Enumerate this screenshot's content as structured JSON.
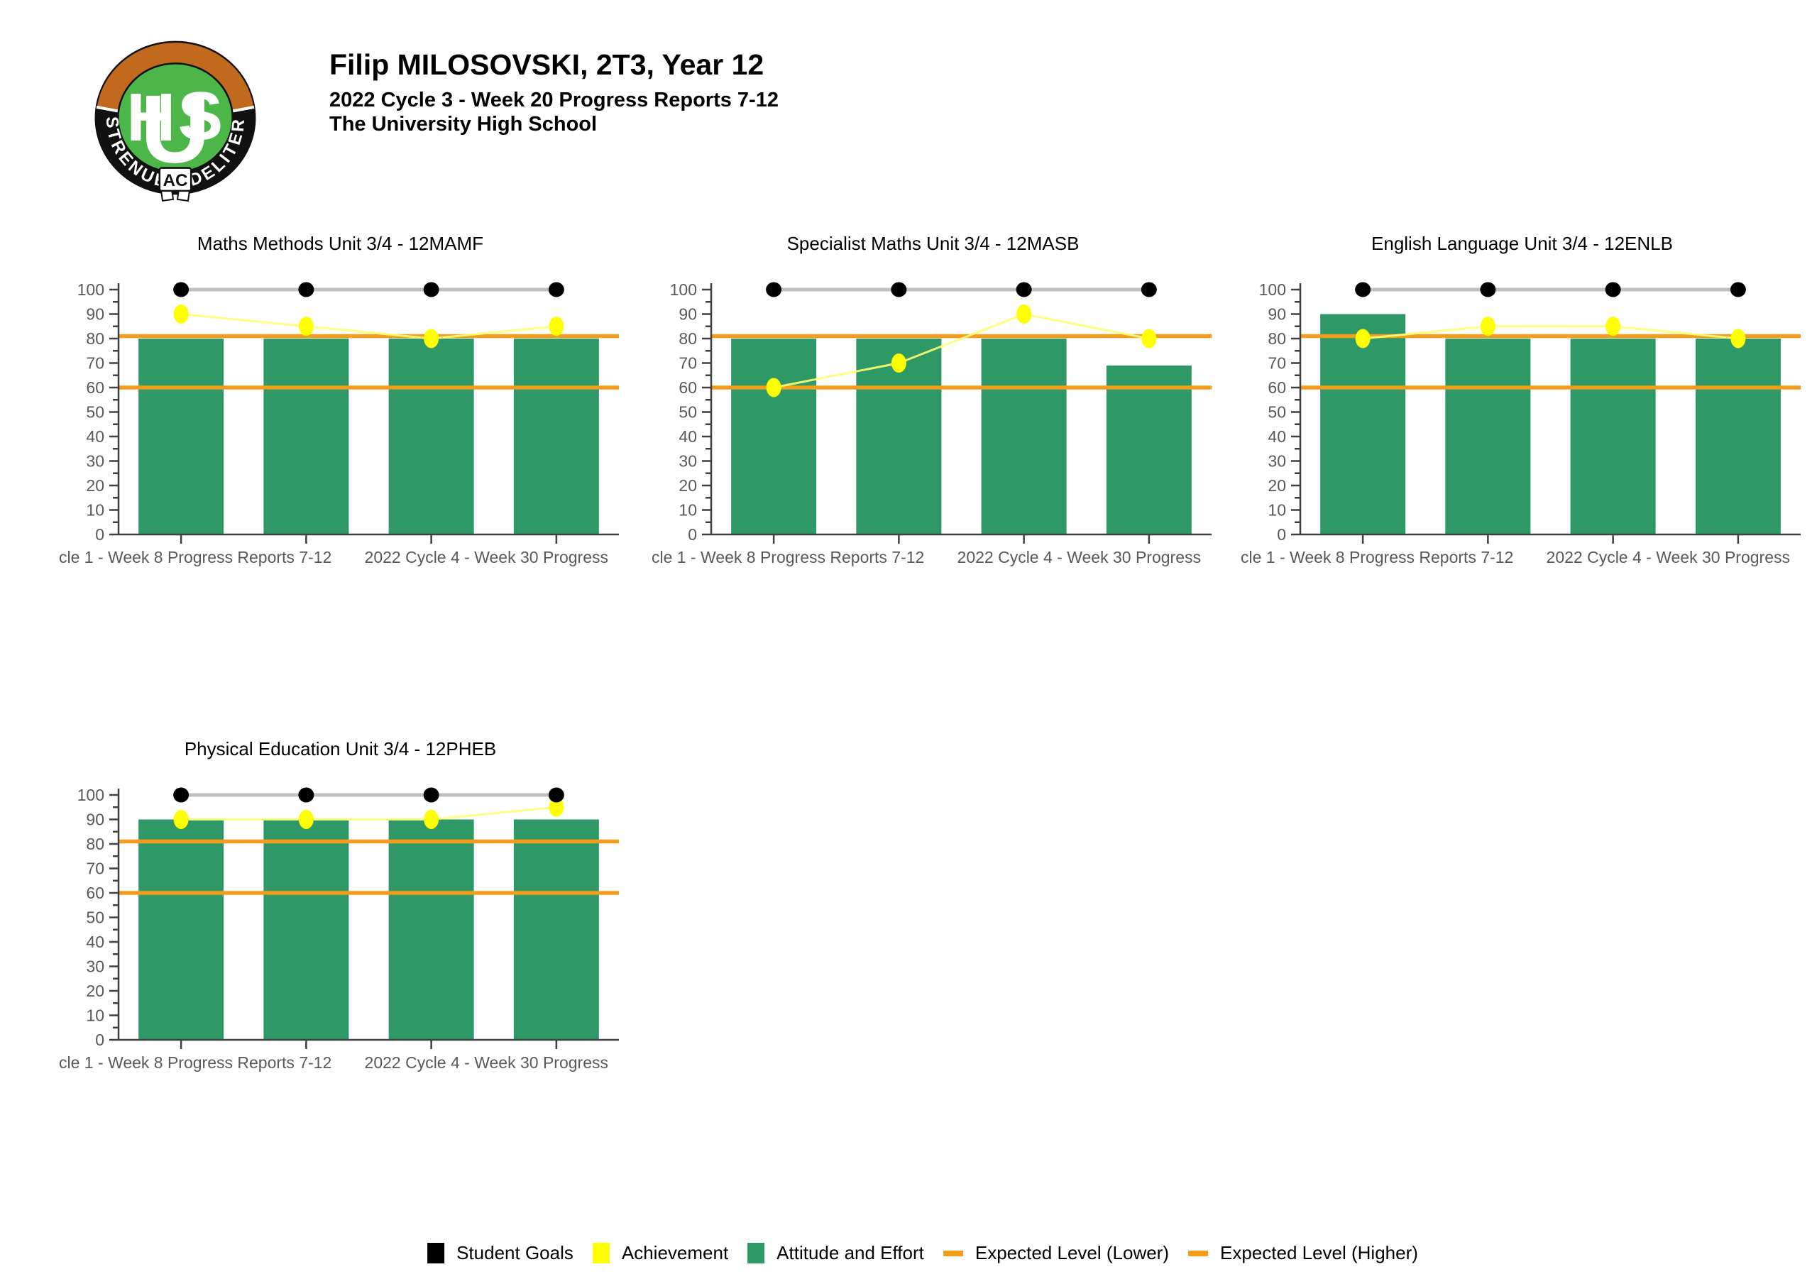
{
  "header": {
    "student_line": "Filip MILOSOVSKI, 2T3, Year 12",
    "report_line": "2022 Cycle 3 - Week 20 Progress Reports 7-12",
    "school_line": "The University High School",
    "logo": {
      "motto_left": "STRENUE",
      "motto_center": "AC",
      "motto_right": "FIDELITER",
      "letters": [
        "U",
        "H",
        "S"
      ]
    }
  },
  "colors": {
    "bar_green": "#2E9966",
    "achievement_yellow": "#FFFF00",
    "achievement_line": "#FFFF73",
    "goals_black": "#000000",
    "goals_line_gray": "#C0C0C0",
    "expected_orange": "#F49C1C",
    "axis_line": "#3F3F3F",
    "tick_label": "#595959",
    "logo_green": "#4CB648",
    "logo_orange": "#C16A1D",
    "logo_black": "#111111",
    "logo_white": "#FFFFFF"
  },
  "axis": {
    "y_ticks": [
      0,
      10,
      20,
      30,
      40,
      50,
      60,
      70,
      80,
      90,
      100
    ],
    "y_minor_step": 5,
    "y_max": 100
  },
  "legend": {
    "items": [
      {
        "label": "Student Goals",
        "swatch": "square",
        "color": "#000000"
      },
      {
        "label": "Achievement",
        "swatch": "square",
        "color": "#FFFF00"
      },
      {
        "label": "Attitude and Effort",
        "swatch": "square",
        "color": "#2E9966"
      },
      {
        "label": "Expected Level (Lower)",
        "swatch": "dash",
        "color": "#F49C1C"
      },
      {
        "label": "Expected Level (Higher)",
        "swatch": "dash",
        "color": "#F49C1C"
      }
    ]
  },
  "chart_data": [
    {
      "type": "bar",
      "title": "Maths Methods Unit 3/4 - 12MAMF",
      "ylim": [
        0,
        100
      ],
      "grid": false,
      "x_axis_visible_labels": {
        "left": "cle 1 - Week 8 Progress Reports 7-12",
        "right": "2022 Cycle 4 - Week 30 Progress"
      },
      "series": [
        {
          "name": "Student Goals",
          "type": "line",
          "color": "#000000",
          "values": [
            100,
            100,
            100,
            100
          ]
        },
        {
          "name": "Achievement",
          "type": "line",
          "color": "#FFFF00",
          "values": [
            90,
            85,
            80,
            85
          ]
        },
        {
          "name": "Attitude and Effort",
          "type": "bar",
          "color": "#2E9966",
          "values": [
            80,
            80,
            80,
            80
          ]
        },
        {
          "name": "Expected Level (Lower)",
          "type": "hline",
          "color": "#F49C1C",
          "value": 60
        },
        {
          "name": "Expected Level (Higher)",
          "type": "hline",
          "color": "#F49C1C",
          "value": 81
        }
      ]
    },
    {
      "type": "bar",
      "title": "Specialist Maths Unit 3/4 - 12MASB",
      "ylim": [
        0,
        100
      ],
      "grid": false,
      "x_axis_visible_labels": {
        "left": "cle 1 - Week 8 Progress Reports 7-12",
        "right": "2022 Cycle 4 - Week 30 Progress"
      },
      "series": [
        {
          "name": "Student Goals",
          "type": "line",
          "color": "#000000",
          "values": [
            100,
            100,
            100,
            100
          ]
        },
        {
          "name": "Achievement",
          "type": "line",
          "color": "#FFFF00",
          "values": [
            60,
            70,
            90,
            80
          ]
        },
        {
          "name": "Attitude and Effort",
          "type": "bar",
          "color": "#2E9966",
          "values": [
            80,
            80,
            80,
            69
          ]
        },
        {
          "name": "Expected Level (Lower)",
          "type": "hline",
          "color": "#F49C1C",
          "value": 60
        },
        {
          "name": "Expected Level (Higher)",
          "type": "hline",
          "color": "#F49C1C",
          "value": 81
        }
      ]
    },
    {
      "type": "bar",
      "title": "English Language Unit 3/4 - 12ENLB",
      "ylim": [
        0,
        100
      ],
      "grid": false,
      "x_axis_visible_labels": {
        "left": "cle 1 - Week 8 Progress Reports 7-12",
        "right": "2022 Cycle 4 - Week 30 Progress"
      },
      "series": [
        {
          "name": "Student Goals",
          "type": "line",
          "color": "#000000",
          "values": [
            100,
            100,
            100,
            100
          ]
        },
        {
          "name": "Achievement",
          "type": "line",
          "color": "#FFFF00",
          "values": [
            80,
            85,
            85,
            80
          ]
        },
        {
          "name": "Attitude and Effort",
          "type": "bar",
          "color": "#2E9966",
          "values": [
            90,
            80,
            80,
            80
          ]
        },
        {
          "name": "Expected Level (Lower)",
          "type": "hline",
          "color": "#F49C1C",
          "value": 60
        },
        {
          "name": "Expected Level (Higher)",
          "type": "hline",
          "color": "#F49C1C",
          "value": 81
        }
      ]
    },
    {
      "type": "bar",
      "title": "Physical Education Unit 3/4 - 12PHEB",
      "ylim": [
        0,
        100
      ],
      "grid": false,
      "x_axis_visible_labels": {
        "left": "cle 1 - Week 8 Progress Reports 7-12",
        "right": "2022 Cycle 4 - Week 30 Progress"
      },
      "series": [
        {
          "name": "Student Goals",
          "type": "line",
          "color": "#000000",
          "values": [
            100,
            100,
            100,
            100
          ]
        },
        {
          "name": "Achievement",
          "type": "line",
          "color": "#FFFF00",
          "values": [
            90,
            90,
            90,
            95
          ]
        },
        {
          "name": "Attitude and Effort",
          "type": "bar",
          "color": "#2E9966",
          "values": [
            90,
            90,
            90,
            90
          ]
        },
        {
          "name": "Expected Level (Lower)",
          "type": "hline",
          "color": "#F49C1C",
          "value": 60
        },
        {
          "name": "Expected Level (Higher)",
          "type": "hline",
          "color": "#F49C1C",
          "value": 81
        }
      ]
    }
  ]
}
